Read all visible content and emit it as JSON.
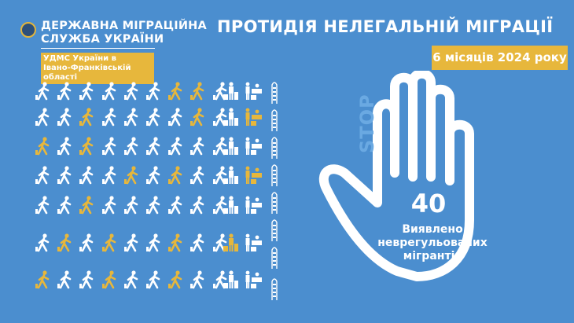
{
  "header": {
    "org_name_line1": "ДЕРЖАВНА МІГРАЦІЙНА",
    "org_name_line2": "СЛУЖБА УКРАЇНИ",
    "department_line1": "УДМС України в",
    "department_line2": "Івано-Франківській області",
    "title": "ПРОТИДІЯ НЕЛЕГАЛЬНІЙ МІГРАЦІЇ",
    "period": "6 місяців 2024 року"
  },
  "stat": {
    "stop_label": "STOP",
    "count": "40",
    "caption_line1": "Виявлено",
    "caption_line2": "неврегульованих",
    "caption_line3": "мігрантів"
  },
  "colors": {
    "background": "#4b8ecf",
    "accent": "#e7b73c",
    "icon": "#ffffff"
  },
  "icon_grid": {
    "rows": [
      {
        "highlighted_walkers": [
          6,
          7
        ],
        "luggage_highlighted": false,
        "desk_highlighted": false
      },
      {
        "highlighted_walkers": [
          2,
          7
        ],
        "luggage_highlighted": false,
        "desk_highlighted": true
      },
      {
        "highlighted_walkers": [
          0,
          2
        ],
        "luggage_highlighted": false,
        "desk_highlighted": false
      },
      {
        "highlighted_walkers": [
          4,
          6
        ],
        "luggage_highlighted": false,
        "desk_highlighted": true
      },
      {
        "highlighted_walkers": [
          2
        ],
        "luggage_highlighted": false,
        "desk_highlighted": false
      },
      {
        "highlighted_walkers": [
          1,
          3,
          6
        ],
        "luggage_highlighted": true,
        "desk_highlighted": false
      },
      {
        "highlighted_walkers": [
          0,
          3,
          6
        ],
        "luggage_highlighted": false,
        "desk_highlighted": false
      }
    ],
    "walkers_per_row": 9
  }
}
